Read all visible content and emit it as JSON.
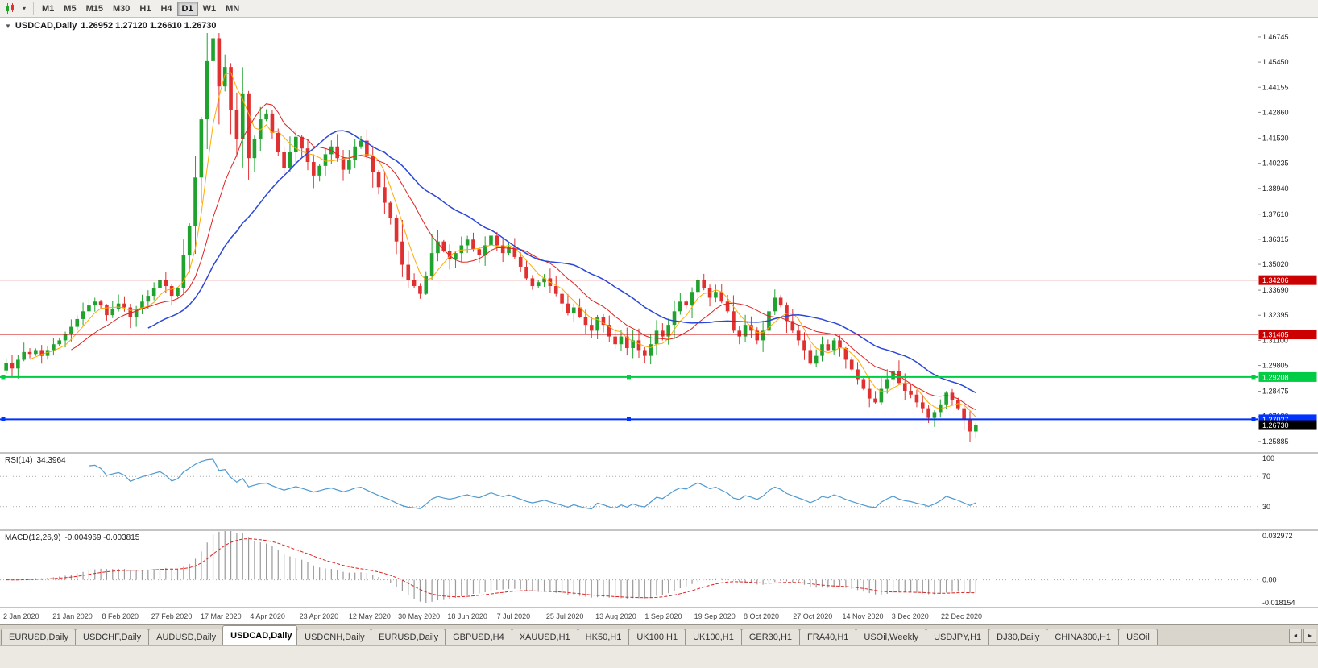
{
  "toolbar": {
    "dropdown_icon": "▾",
    "timeframes": [
      {
        "label": "M1",
        "active": false
      },
      {
        "label": "M5",
        "active": false
      },
      {
        "label": "M15",
        "active": false
      },
      {
        "label": "M30",
        "active": false
      },
      {
        "label": "H1",
        "active": false
      },
      {
        "label": "H4",
        "active": false
      },
      {
        "label": "D1",
        "active": true
      },
      {
        "label": "W1",
        "active": false
      },
      {
        "label": "MN",
        "active": false
      }
    ]
  },
  "chart": {
    "collapse_icon": "▼",
    "symbol_label": "USDCAD,Daily",
    "quote_text": "1.26952 1.27120 1.26610 1.26730"
  },
  "chart_data": {
    "type": "candlestick",
    "symbol": "USDCAD",
    "timeframe": "Daily",
    "last_quote": {
      "open": 1.26952,
      "high": 1.2712,
      "low": 1.2661,
      "close": 1.2673
    },
    "up_color": "#1fa32e",
    "down_color": "#e03030",
    "price_axis_ticks": [
      1.46745,
      1.4545,
      1.44155,
      1.4286,
      1.4153,
      1.40235,
      1.3894,
      1.3761,
      1.36315,
      1.3502,
      1.3369,
      1.32395,
      1.311,
      1.29805,
      1.28475,
      1.2718,
      1.25885
    ],
    "price_range": {
      "min": 1.2534,
      "max": 1.4774
    },
    "x_labels": [
      "2 Jan 2020",
      "21 Jan 2020",
      "8 Feb 2020",
      "27 Feb 2020",
      "17 Mar 2020",
      "4 Apr 2020",
      "23 Apr 2020",
      "12 May 2020",
      "30 May 2020",
      "18 Jun 2020",
      "7 Jul 2020",
      "25 Jul 2020",
      "13 Aug 2020",
      "1 Sep 2020",
      "19 Sep 2020",
      "8 Oct 2020",
      "27 Oct 2020",
      "14 Nov 2020",
      "3 Dec 2020",
      "22 Dec 2020"
    ],
    "closes": [
      1.2995,
      1.2965,
      1.301,
      1.305,
      1.304,
      1.306,
      1.303,
      1.306,
      1.309,
      1.311,
      1.314,
      1.318,
      1.322,
      1.326,
      1.329,
      1.331,
      1.329,
      1.324,
      1.327,
      1.33,
      1.328,
      1.323,
      1.327,
      1.331,
      1.334,
      1.338,
      1.342,
      1.339,
      1.334,
      1.338,
      1.355,
      1.37,
      1.395,
      1.425,
      1.455,
      1.4668,
      1.442,
      1.452,
      1.43,
      1.415,
      1.438,
      1.405,
      1.415,
      1.425,
      1.428,
      1.418,
      1.408,
      1.4,
      1.408,
      1.416,
      1.41,
      1.403,
      1.396,
      1.401,
      1.407,
      1.411,
      1.405,
      1.399,
      1.404,
      1.411,
      1.414,
      1.406,
      1.398,
      1.39,
      1.382,
      1.374,
      1.362,
      1.35,
      1.342,
      1.339,
      1.335,
      1.344,
      1.356,
      1.362,
      1.357,
      1.353,
      1.356,
      1.36,
      1.363,
      1.358,
      1.355,
      1.36,
      1.365,
      1.36,
      1.356,
      1.359,
      1.354,
      1.349,
      1.343,
      1.339,
      1.341,
      1.343,
      1.339,
      1.335,
      1.33,
      1.325,
      1.328,
      1.323,
      1.319,
      1.316,
      1.323,
      1.319,
      1.313,
      1.309,
      1.313,
      1.307,
      1.311,
      1.306,
      1.303,
      1.309,
      1.316,
      1.313,
      1.319,
      1.326,
      1.331,
      1.329,
      1.336,
      1.342,
      1.338,
      1.333,
      1.336,
      1.331,
      1.326,
      1.316,
      1.313,
      1.319,
      1.316,
      1.311,
      1.316,
      1.326,
      1.333,
      1.329,
      1.321,
      1.316,
      1.311,
      1.306,
      1.299,
      1.303,
      1.309,
      1.306,
      1.311,
      1.307,
      1.301,
      1.296,
      1.291,
      1.286,
      1.281,
      1.279,
      1.286,
      1.291,
      1.295,
      1.289,
      1.285,
      1.283,
      1.279,
      1.276,
      1.271,
      1.274,
      1.278,
      1.284,
      1.28,
      1.276,
      1.27,
      1.264,
      1.2673
    ],
    "horizontal_lines": [
      {
        "price": 1.34206,
        "label": "1.34206",
        "color": "#cc0000",
        "width": 1,
        "selected": false
      },
      {
        "price": 1.31405,
        "label": "1.31405",
        "color": "#cc0000",
        "width": 1,
        "selected": false
      },
      {
        "price": 1.29208,
        "label": "1.29208",
        "color": "#00cc44",
        "width": 2,
        "selected": true
      },
      {
        "price": 1.27027,
        "label": "1.27027",
        "color": "#0033ff",
        "width": 2,
        "selected": true
      }
    ],
    "current_price": {
      "value": 1.2673,
      "label": "1.26730",
      "color": "#000000"
    },
    "moving_averages": [
      {
        "period": 5,
        "color": "#ffaa00",
        "width": 1
      },
      {
        "period": 12,
        "color": "#dd2222",
        "width": 1
      },
      {
        "period": 25,
        "color": "#2b47d8",
        "width": 1.5
      }
    ],
    "indicators": {
      "rsi": {
        "name": "RSI(14)",
        "value": "34.3964",
        "period": 14,
        "levels": [
          100,
          70,
          30
        ],
        "color": "#4f9ad0"
      },
      "macd": {
        "name": "MACD(12,26,9)",
        "values": "-0.004969 -0.003815",
        "fast": 12,
        "slow": 26,
        "signal": 9,
        "axis_ticks": [
          "0.032972",
          "0.00",
          "-0.018154"
        ],
        "range": {
          "min": -0.0182,
          "max": 0.033
        },
        "bar_color": "#9a9a9a",
        "signal_color": "#dd2222"
      }
    }
  },
  "tabs": {
    "scroll_left_icon": "◄",
    "scroll_right_icon": "►",
    "items": [
      {
        "label": "EURUSD,Daily",
        "active": false
      },
      {
        "label": "USDCHF,Daily",
        "active": false
      },
      {
        "label": "AUDUSD,Daily",
        "active": false
      },
      {
        "label": "USDCAD,Daily",
        "active": true
      },
      {
        "label": "USDCNH,Daily",
        "active": false
      },
      {
        "label": "EURUSD,Daily",
        "active": false
      },
      {
        "label": "GBPUSD,H4",
        "active": false
      },
      {
        "label": "XAUUSD,H1",
        "active": false
      },
      {
        "label": "HK50,H1",
        "active": false
      },
      {
        "label": "UK100,H1",
        "active": false
      },
      {
        "label": "UK100,H1",
        "active": false
      },
      {
        "label": "GER30,H1",
        "active": false
      },
      {
        "label": "FRA40,H1",
        "active": false
      },
      {
        "label": "USOil,Weekly",
        "active": false
      },
      {
        "label": "USDJPY,H1",
        "active": false
      },
      {
        "label": "DJ30,Daily",
        "active": false
      },
      {
        "label": "CHINA300,H1",
        "active": false
      },
      {
        "label": "USOil",
        "active": false
      }
    ]
  }
}
